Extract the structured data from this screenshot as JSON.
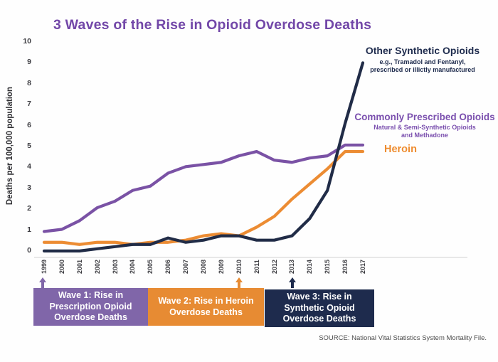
{
  "title": "3 Waves of the Rise in Opioid Overdose Deaths",
  "y_axis": {
    "label": "Deaths per 100,000 population",
    "ticks": [
      0,
      1,
      2,
      3,
      4,
      5,
      6,
      7,
      8,
      9,
      10
    ]
  },
  "legend": {
    "synthetic": {
      "title": "Other Synthetic Opioids",
      "sub1": "e.g., Tramadol and Fentanyl,",
      "sub2": "prescribed or illictly manufactured"
    },
    "prescribed": {
      "title": "Commonly Prescribed Opioids",
      "sub1": "Natural & Semi-Synthetic Opioids",
      "sub2": "and Methadone"
    },
    "heroin": {
      "title": "Heroin"
    }
  },
  "waves": [
    {
      "lines": [
        "Wave 1: Rise in",
        "Prescription Opioid",
        "Overdose Deaths"
      ],
      "color": "#8066a9"
    },
    {
      "lines": [
        "Wave 2: Rise in Heroin",
        "Overdose Deaths"
      ],
      "color": "#e78b33"
    },
    {
      "lines": [
        "Wave 3: Rise in",
        "Synthetic Opioid",
        "Overdose Deaths"
      ],
      "color": "#1e2b4d"
    }
  ],
  "source": "SOURCE: National Vital Statistics System Mortality File.",
  "colors": {
    "title_purple": "#7247a8",
    "prescribed_line": "#7a52a5",
    "heroin_line": "#ec8c33",
    "synthetic_line": "#212c47",
    "axis_line": "#dcdcdc"
  },
  "chart_data": {
    "type": "line",
    "title": "3 Waves of the Rise in Opioid Overdose Deaths",
    "xlabel": "",
    "ylabel": "Deaths per 100,000 population",
    "ylim": [
      0,
      10
    ],
    "grid": false,
    "legend_position": "annotations at line ends",
    "x": [
      1999,
      2000,
      2001,
      2002,
      2003,
      2004,
      2005,
      2006,
      2007,
      2008,
      2009,
      2010,
      2011,
      2012,
      2013,
      2014,
      2015,
      2016,
      2017
    ],
    "series": [
      {
        "name": "Commonly Prescribed Opioids (Natural & Semi-Synthetic Opioids and Methadone)",
        "color": "#7a52a5",
        "values": [
          1.2,
          1.3,
          1.7,
          2.3,
          2.6,
          3.1,
          3.3,
          3.9,
          4.2,
          4.3,
          4.4,
          4.7,
          4.9,
          4.5,
          4.4,
          4.6,
          4.7,
          5.2,
          5.2
        ]
      },
      {
        "name": "Heroin",
        "color": "#ec8c33",
        "values": [
          0.7,
          0.7,
          0.6,
          0.7,
          0.7,
          0.6,
          0.7,
          0.7,
          0.8,
          1.0,
          1.1,
          1.0,
          1.4,
          1.9,
          2.7,
          3.4,
          4.1,
          4.9,
          4.9
        ]
      },
      {
        "name": "Other Synthetic Opioids (e.g., Tramadol and Fentanyl, prescribed or illictly manufactured)",
        "color": "#212c47",
        "values": [
          0.3,
          0.3,
          0.3,
          0.4,
          0.5,
          0.6,
          0.6,
          0.9,
          0.7,
          0.8,
          1.0,
          1.0,
          0.8,
          0.8,
          1.0,
          1.8,
          3.1,
          6.2,
          9.0
        ]
      }
    ],
    "annotations": [
      {
        "text": "Wave 1: Rise in Prescription Opioid Overdose Deaths",
        "year": 1999
      },
      {
        "text": "Wave 2: Rise in Heroin Overdose Deaths",
        "year": 2010
      },
      {
        "text": "Wave 3: Rise in Synthetic Opioid Overdose Deaths",
        "year": 2013
      }
    ]
  }
}
